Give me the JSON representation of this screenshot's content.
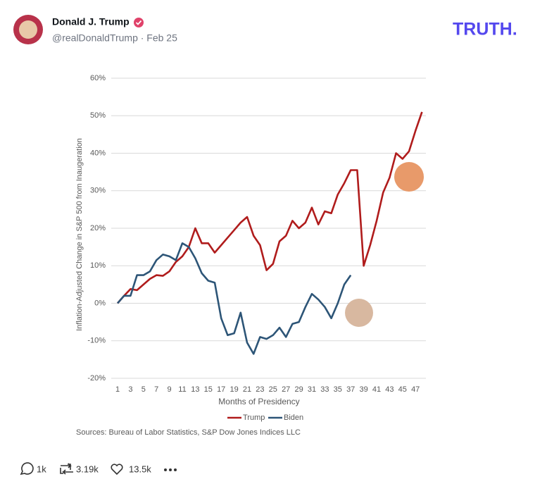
{
  "post": {
    "author": "Donald J. Trump",
    "handle": "@realDonaldTrump · Feb 25",
    "brand": "TRUTH.",
    "stats": {
      "replies": "1k",
      "reposts": "3.19k",
      "likes": "13.5k"
    }
  },
  "chart_data": {
    "type": "line",
    "y_label": "Inflation-Adjusted Change in S&P 500 from Inaugeration",
    "x_label": "Months of Presidency",
    "source": "Sources: Bureau of Labor Statistics, S&P Dow Jones Indices LLC",
    "categories": [
      1,
      null,
      3,
      null,
      5,
      null,
      7,
      null,
      9,
      null,
      11,
      null,
      13,
      null,
      15,
      null,
      17,
      null,
      19,
      null,
      21,
      null,
      23,
      null,
      25,
      null,
      27,
      null,
      29,
      null,
      31,
      null,
      33,
      null,
      35,
      null,
      37,
      null,
      39,
      null,
      41,
      null,
      43,
      null,
      45,
      null,
      47,
      null
    ],
    "series": [
      {
        "name": "Trump",
        "color": "#b01c1c",
        "values": [
          0,
          2,
          3.8,
          3.5,
          5,
          6.5,
          7.5,
          7.3,
          8.5,
          11,
          12.5,
          15,
          20,
          16,
          16,
          13.5,
          15.5,
          17.5,
          19.5,
          21.5,
          23,
          18,
          15.5,
          8.8,
          10.5,
          16.5,
          18,
          22,
          20,
          21.5,
          25.5,
          21,
          24.5,
          24,
          29,
          32,
          35.5,
          35.5,
          10,
          15.5,
          22,
          29.5,
          33.5,
          40,
          38.5,
          40.5,
          46,
          51
        ]
      },
      {
        "name": "Biden",
        "color": "#2d5577",
        "values": [
          0,
          2,
          2,
          7.5,
          7.5,
          8.5,
          11.5,
          13,
          12.5,
          11.5,
          16,
          15,
          12,
          8,
          6,
          5.5,
          -4,
          -8.5,
          -8,
          -2.5,
          -10.5,
          -13.5,
          -9,
          -9.5,
          -8.5,
          -6.5,
          -9,
          -5.5,
          -5,
          -1,
          2.5,
          1,
          -1,
          -4,
          0,
          5,
          7.5,
          null,
          null,
          null,
          null,
          null,
          null,
          null,
          null,
          null,
          null,
          null
        ]
      }
    ],
    "ylim": [
      -20,
      60
    ],
    "yticks": [
      {
        "value": -20,
        "label": "-20%"
      },
      {
        "value": -10,
        "label": "-10%"
      },
      {
        "value": 0,
        "label": "0%"
      },
      {
        "value": 10,
        "label": "10%"
      },
      {
        "value": 20,
        "label": "20%"
      },
      {
        "value": 30,
        "label": "30%"
      },
      {
        "value": 40,
        "label": "40%"
      },
      {
        "value": 50,
        "label": "50%"
      },
      {
        "value": 60,
        "label": "60%"
      }
    ],
    "grid": true,
    "legend": "bottom"
  }
}
